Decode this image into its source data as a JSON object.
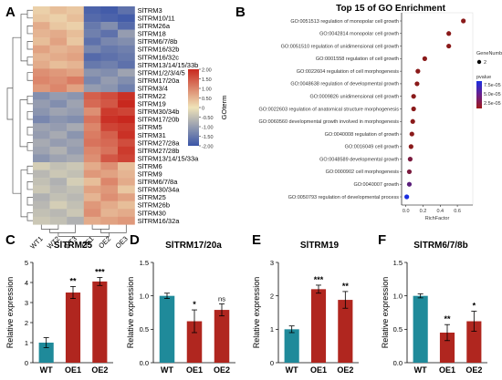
{
  "chart_data": [
    {
      "panel": "A",
      "type": "heatmap",
      "genes": [
        "SlTRM3",
        "SlTRM10/11",
        "SlTRM26a",
        "SlTRM18",
        "SlTRM6/7/8b",
        "SlTRM16/32b",
        "SlTRM16/32c",
        "SlTRM13/14/15/33b",
        "SlTRM1/2/3/4/5",
        "SlTRM17/20a",
        "SlTRM3/4",
        "SlTRM22",
        "SlTRM19",
        "SlTRM30/34b",
        "SlTRM17/20b",
        "SlTRM5",
        "SlTRM31",
        "SlTRM27/28a",
        "SlTRM27/28b",
        "SlTRM13/14/15/33a",
        "SlTRM6",
        "SlTRM9",
        "SlTRM6/7/8a",
        "SlTRM30/34a",
        "SlTRM25",
        "SlTRM26b",
        "SlTRM30",
        "SlTRM16/32a"
      ],
      "samples": [
        "WT1",
        "WT2",
        "WT3",
        "OE1",
        "OE2",
        "OE3"
      ],
      "values": [
        [
          0.2,
          0.4,
          0.3,
          -1.8,
          -1.9,
          -1.6
        ],
        [
          0.3,
          0.2,
          0.4,
          -1.7,
          -1.8,
          -1.9
        ],
        [
          0.6,
          0.3,
          0.2,
          -1.5,
          -1.2,
          -1.7
        ],
        [
          0.5,
          0.6,
          0.4,
          -1.4,
          -1.6,
          -1.0
        ],
        [
          0.4,
          0.7,
          0.3,
          -1.6,
          -1.3,
          -1.2
        ],
        [
          0.7,
          0.5,
          0.6,
          -1.3,
          -1.5,
          -1.4
        ],
        [
          0.5,
          0.6,
          0.7,
          -1.7,
          -1.6,
          -1.5
        ],
        [
          0.6,
          0.4,
          0.5,
          -1.5,
          -1.4,
          -1.6
        ],
        [
          0.9,
          0.8,
          0.7,
          -1.1,
          -1.2,
          -0.9
        ],
        [
          1.0,
          0.9,
          1.1,
          -1.3,
          -1.0,
          -1.2
        ],
        [
          0.8,
          1.0,
          0.7,
          -1.0,
          -1.1,
          -1.4
        ],
        [
          -1.2,
          -1.0,
          -1.1,
          1.4,
          1.6,
          1.9
        ],
        [
          -1.0,
          -1.2,
          -0.9,
          1.3,
          1.5,
          2.0
        ],
        [
          -1.1,
          -0.9,
          -1.0,
          0.9,
          1.8,
          1.7
        ],
        [
          -1.3,
          -1.1,
          -1.2,
          1.2,
          1.9,
          2.0
        ],
        [
          -0.9,
          -1.0,
          -0.8,
          1.0,
          1.7,
          1.8
        ],
        [
          -1.0,
          -0.8,
          -1.1,
          1.1,
          1.4,
          1.9
        ],
        [
          -0.8,
          -1.0,
          -0.9,
          1.2,
          1.3,
          1.6
        ],
        [
          -0.9,
          -0.7,
          -1.0,
          1.0,
          1.2,
          1.8
        ],
        [
          -1.1,
          -0.9,
          -0.8,
          0.9,
          1.5,
          1.7
        ],
        [
          -0.3,
          -0.5,
          -0.4,
          0.6,
          0.9,
          0.4
        ],
        [
          -0.6,
          -0.4,
          -0.5,
          0.8,
          0.7,
          0.5
        ],
        [
          -0.5,
          -0.7,
          -0.3,
          0.4,
          1.0,
          0.6
        ],
        [
          -0.4,
          -0.6,
          -0.5,
          0.7,
          0.8,
          0.3
        ],
        [
          -0.7,
          -0.5,
          -0.6,
          0.5,
          0.9,
          0.7
        ],
        [
          -0.6,
          -0.3,
          -0.5,
          0.8,
          0.6,
          0.4
        ],
        [
          -0.5,
          -0.6,
          -0.4,
          0.9,
          0.5,
          0.6
        ],
        [
          -0.4,
          -0.5,
          -0.7,
          0.6,
          0.7,
          0.8
        ]
      ],
      "colorbar": {
        "label": "GOterm",
        "ticks": [
          "2.00",
          "1.50",
          "1.00",
          "0.50",
          "0",
          "-0.50",
          "-1.00",
          "-1.50",
          "-2.00"
        ],
        "range": [
          -2,
          2
        ]
      },
      "colors": {
        "low": "#3a55a8",
        "mid": "#efe3b8",
        "high": "#c8281e"
      }
    },
    {
      "panel": "B",
      "type": "scatter",
      "title": "Top 15 of GO Enrichment",
      "xlabel": "RichFactor",
      "ylabel": "",
      "xlim": [
        -0.05,
        0.78
      ],
      "xticks": [
        "0.0",
        "0.2",
        "0.4",
        "0.6"
      ],
      "terms": [
        "GO:0051513 regulation of monopolar cell growth",
        "GO:0042814 monopolar cell growth",
        "GO:0051510 regulation of unidimensional cell growth",
        "GO:0001558 regulation of cell growth",
        "GO:0022604 regulation of cell morphogenesis",
        "GO:0048638 regulation of developmental growth",
        "GO:0009826 unidimensional cell growth",
        "GO:0022603 regulation of anatomical structure morphogenesis",
        "GO:0060560 developmental growth involved in morphogenesis",
        "GO:0040008 regulation of growth",
        "GO:0016049 cell growth",
        "GO:0048589 developmental growth",
        "GO:0000902 cell morphogenesis",
        "GO:0040007 growth",
        "GO:0050793 regulation of developmental process"
      ],
      "richfactor": [
        0.67,
        0.5,
        0.5,
        0.22,
        0.14,
        0.13,
        0.09,
        0.09,
        0.08,
        0.07,
        0.06,
        0.05,
        0.04,
        0.04,
        0.01
      ],
      "pvalue_color": [
        "#8a1a1a",
        "#8a1a1a",
        "#8a1a1a",
        "#8a1a1a",
        "#8a1a1a",
        "#8a1a1a",
        "#8a1a1a",
        "#8a1a1a",
        "#8a1a1a",
        "#8a1a1a",
        "#8a1a1a",
        "#7a1a3e",
        "#7a1a3e",
        "#5a1e7a",
        "#1a2ee0"
      ],
      "legend": {
        "gene_label": "GeneNumber",
        "gene_value": "2",
        "pvalue_label": "pvalue",
        "pvalue_ticks": [
          "7.5e-05",
          "5.0e-05",
          "2.5e-05"
        ]
      }
    },
    {
      "panel": "C",
      "type": "bar",
      "title": "SlTRM25",
      "ylabel": "Relative expression",
      "categories": [
        "WT",
        "OE1",
        "OE2"
      ],
      "values": [
        1.0,
        3.5,
        4.05
      ],
      "errors": [
        0.25,
        0.3,
        0.2
      ],
      "sig": [
        "",
        "**",
        "***"
      ],
      "ylim": [
        0,
        5
      ],
      "yticks": [
        "0",
        "1",
        "2",
        "3",
        "4",
        "5"
      ],
      "colors": [
        "#1f8a9a",
        "#b0261f",
        "#b0261f"
      ]
    },
    {
      "panel": "D",
      "type": "bar",
      "title": "SlTRM17/20a",
      "ylabel": "Relative expression",
      "categories": [
        "WT",
        "OE1",
        "OE2"
      ],
      "values": [
        1.0,
        0.62,
        0.79
      ],
      "errors": [
        0.04,
        0.17,
        0.09
      ],
      "sig": [
        "",
        "*",
        "ns"
      ],
      "ylim": [
        0,
        1.5
      ],
      "yticks": [
        "0.0",
        "0.5",
        "1.0",
        "1.5"
      ],
      "colors": [
        "#1f8a9a",
        "#b0261f",
        "#b0261f"
      ]
    },
    {
      "panel": "E",
      "type": "bar",
      "title": "SlTRM19",
      "ylabel": "Relative expression",
      "categories": [
        "WT",
        "OE1",
        "OE2"
      ],
      "values": [
        1.0,
        2.2,
        1.88
      ],
      "errors": [
        0.1,
        0.12,
        0.25
      ],
      "sig": [
        "",
        "***",
        "**"
      ],
      "ylim": [
        0,
        3
      ],
      "yticks": [
        "0",
        "1",
        "2",
        "3"
      ],
      "colors": [
        "#1f8a9a",
        "#b0261f",
        "#b0261f"
      ]
    },
    {
      "panel": "F",
      "type": "bar",
      "title": "SlTRM6/7/8b",
      "ylabel": "Relative expression",
      "categories": [
        "WT",
        "OE1",
        "OE2"
      ],
      "values": [
        1.0,
        0.45,
        0.62
      ],
      "errors": [
        0.03,
        0.12,
        0.15
      ],
      "sig": [
        "",
        "**",
        "*"
      ],
      "ylim": [
        0,
        1.5
      ],
      "yticks": [
        "0.0",
        "0.5",
        "1.0",
        "1.5"
      ],
      "colors": [
        "#1f8a9a",
        "#b0261f",
        "#b0261f"
      ]
    }
  ],
  "panel_letters": [
    "A",
    "B",
    "C",
    "D",
    "E",
    "F"
  ]
}
